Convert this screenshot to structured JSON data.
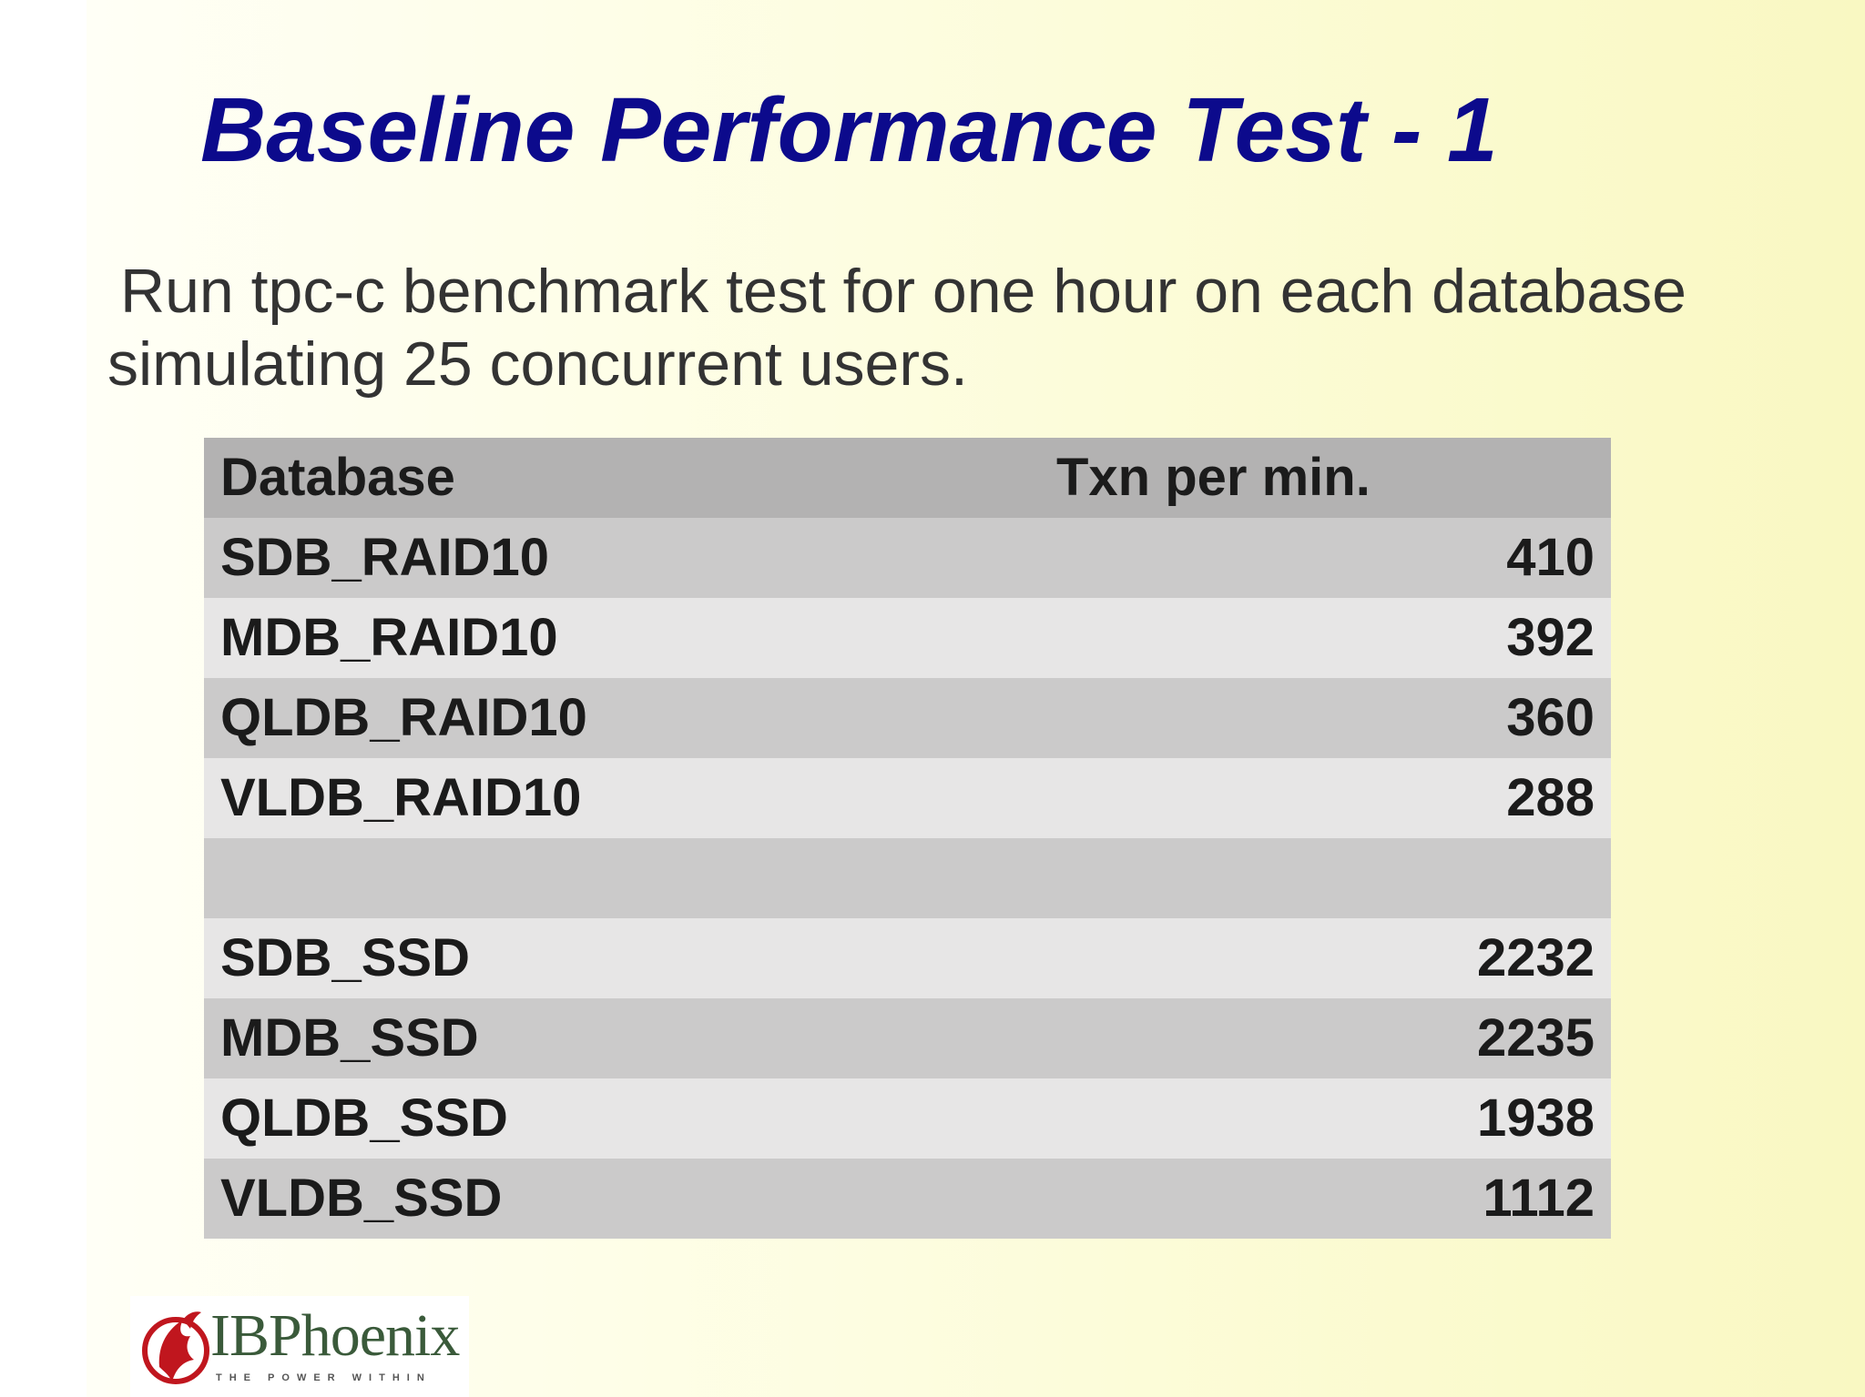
{
  "title": "Baseline Performance Test - 1",
  "subtitle": {
    "line1": "Run tpc-c benchmark test for one hour on each database",
    "line2": "simulating 25 concurrent users."
  },
  "table": {
    "headers": [
      "Database",
      "Txn per min."
    ],
    "rows": [
      {
        "database": "SDB_RAID10",
        "txn": "410"
      },
      {
        "database": "MDB_RAID10",
        "txn": "392"
      },
      {
        "database": "QLDB_RAID10",
        "txn": "360"
      },
      {
        "database": "VLDB_RAID10",
        "txn": "288"
      },
      {
        "database": "",
        "txn": ""
      },
      {
        "database": "SDB_SSD",
        "txn": "2232"
      },
      {
        "database": "MDB_SSD",
        "txn": "2235"
      },
      {
        "database": "QLDB_SSD",
        "txn": "1938"
      },
      {
        "database": "VLDB_SSD",
        "txn": "1112"
      }
    ]
  },
  "logo": {
    "name": "IBPhoenix",
    "tagline": "THE POWER WITHIN",
    "icon": "phoenix-icon",
    "colors": {
      "icon": "#c0161e",
      "text": "#3a5a3a"
    }
  },
  "colors": {
    "title": "#0c0a8c",
    "header_row": "#b3b2b2",
    "odd_row": "#cbcaca",
    "even_row": "#e7e6e6"
  }
}
